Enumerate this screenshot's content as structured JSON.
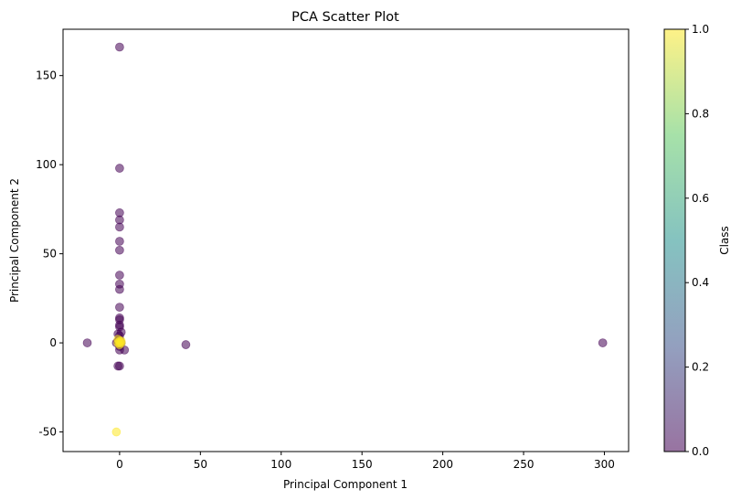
{
  "chart_data": {
    "type": "scatter",
    "title": "PCA Scatter Plot",
    "xlabel": "Principal Component 1",
    "ylabel": "Principal Component 2",
    "xlim": [
      -35,
      315
    ],
    "ylim": [
      -61,
      176
    ],
    "xticks": [
      0,
      50,
      100,
      150,
      200,
      250,
      300
    ],
    "yticks": [
      -50,
      0,
      50,
      100,
      150
    ],
    "grid": false,
    "marker_alpha": 0.55,
    "colormap": "viridis",
    "colormap_stops": [
      "#440154",
      "#3b528b",
      "#21918c",
      "#5ec962",
      "#fde725"
    ],
    "colorbar": {
      "label": "Class",
      "range": [
        0.0,
        1.0
      ],
      "ticks": [
        "0.0",
        "0.2",
        "0.4",
        "0.6",
        "0.8",
        "1.0"
      ]
    },
    "points": [
      {
        "x": 0,
        "y": 166,
        "class": 0
      },
      {
        "x": 0,
        "y": 98,
        "class": 0
      },
      {
        "x": 0,
        "y": 73,
        "class": 0
      },
      {
        "x": 0,
        "y": 69,
        "class": 0
      },
      {
        "x": 0,
        "y": 65,
        "class": 0
      },
      {
        "x": 0,
        "y": 57,
        "class": 0
      },
      {
        "x": 0,
        "y": 52,
        "class": 0
      },
      {
        "x": 0,
        "y": 38,
        "class": 0
      },
      {
        "x": 0,
        "y": 33,
        "class": 0
      },
      {
        "x": 0,
        "y": 30,
        "class": 0
      },
      {
        "x": 0,
        "y": 20,
        "class": 0
      },
      {
        "x": 0,
        "y": 14,
        "class": 0
      },
      {
        "x": 0,
        "y": 13,
        "class": 0
      },
      {
        "x": 0,
        "y": 10,
        "class": 0
      },
      {
        "x": 0,
        "y": 9,
        "class": 0
      },
      {
        "x": 1,
        "y": 6,
        "class": 0
      },
      {
        "x": -1,
        "y": 5,
        "class": 0
      },
      {
        "x": 0,
        "y": 4,
        "class": 0
      },
      {
        "x": 0,
        "y": 2,
        "class": 0
      },
      {
        "x": -1,
        "y": 1,
        "class": 0
      },
      {
        "x": -2,
        "y": 0,
        "class": 0
      },
      {
        "x": 1,
        "y": 0,
        "class": 0
      },
      {
        "x": 0,
        "y": -1,
        "class": 0
      },
      {
        "x": 0,
        "y": -2,
        "class": 0
      },
      {
        "x": 0,
        "y": -4,
        "class": 0
      },
      {
        "x": 3,
        "y": -4,
        "class": 0
      },
      {
        "x": 0,
        "y": -13,
        "class": 0
      },
      {
        "x": -1,
        "y": -13,
        "class": 0
      },
      {
        "x": -20,
        "y": 0,
        "class": 0
      },
      {
        "x": 41,
        "y": -1,
        "class": 0
      },
      {
        "x": 299,
        "y": 0,
        "class": 0
      },
      {
        "x": -2,
        "y": -50,
        "class": 1
      },
      {
        "x": -1,
        "y": 2,
        "class": 1
      },
      {
        "x": 0,
        "y": 1,
        "class": 1
      },
      {
        "x": 1,
        "y": 0,
        "class": 1
      },
      {
        "x": -1,
        "y": 0,
        "class": 1
      },
      {
        "x": 0,
        "y": 0,
        "class": 1
      },
      {
        "x": 1,
        "y": 1,
        "class": 1
      },
      {
        "x": 0,
        "y": -1,
        "class": 1
      }
    ]
  }
}
